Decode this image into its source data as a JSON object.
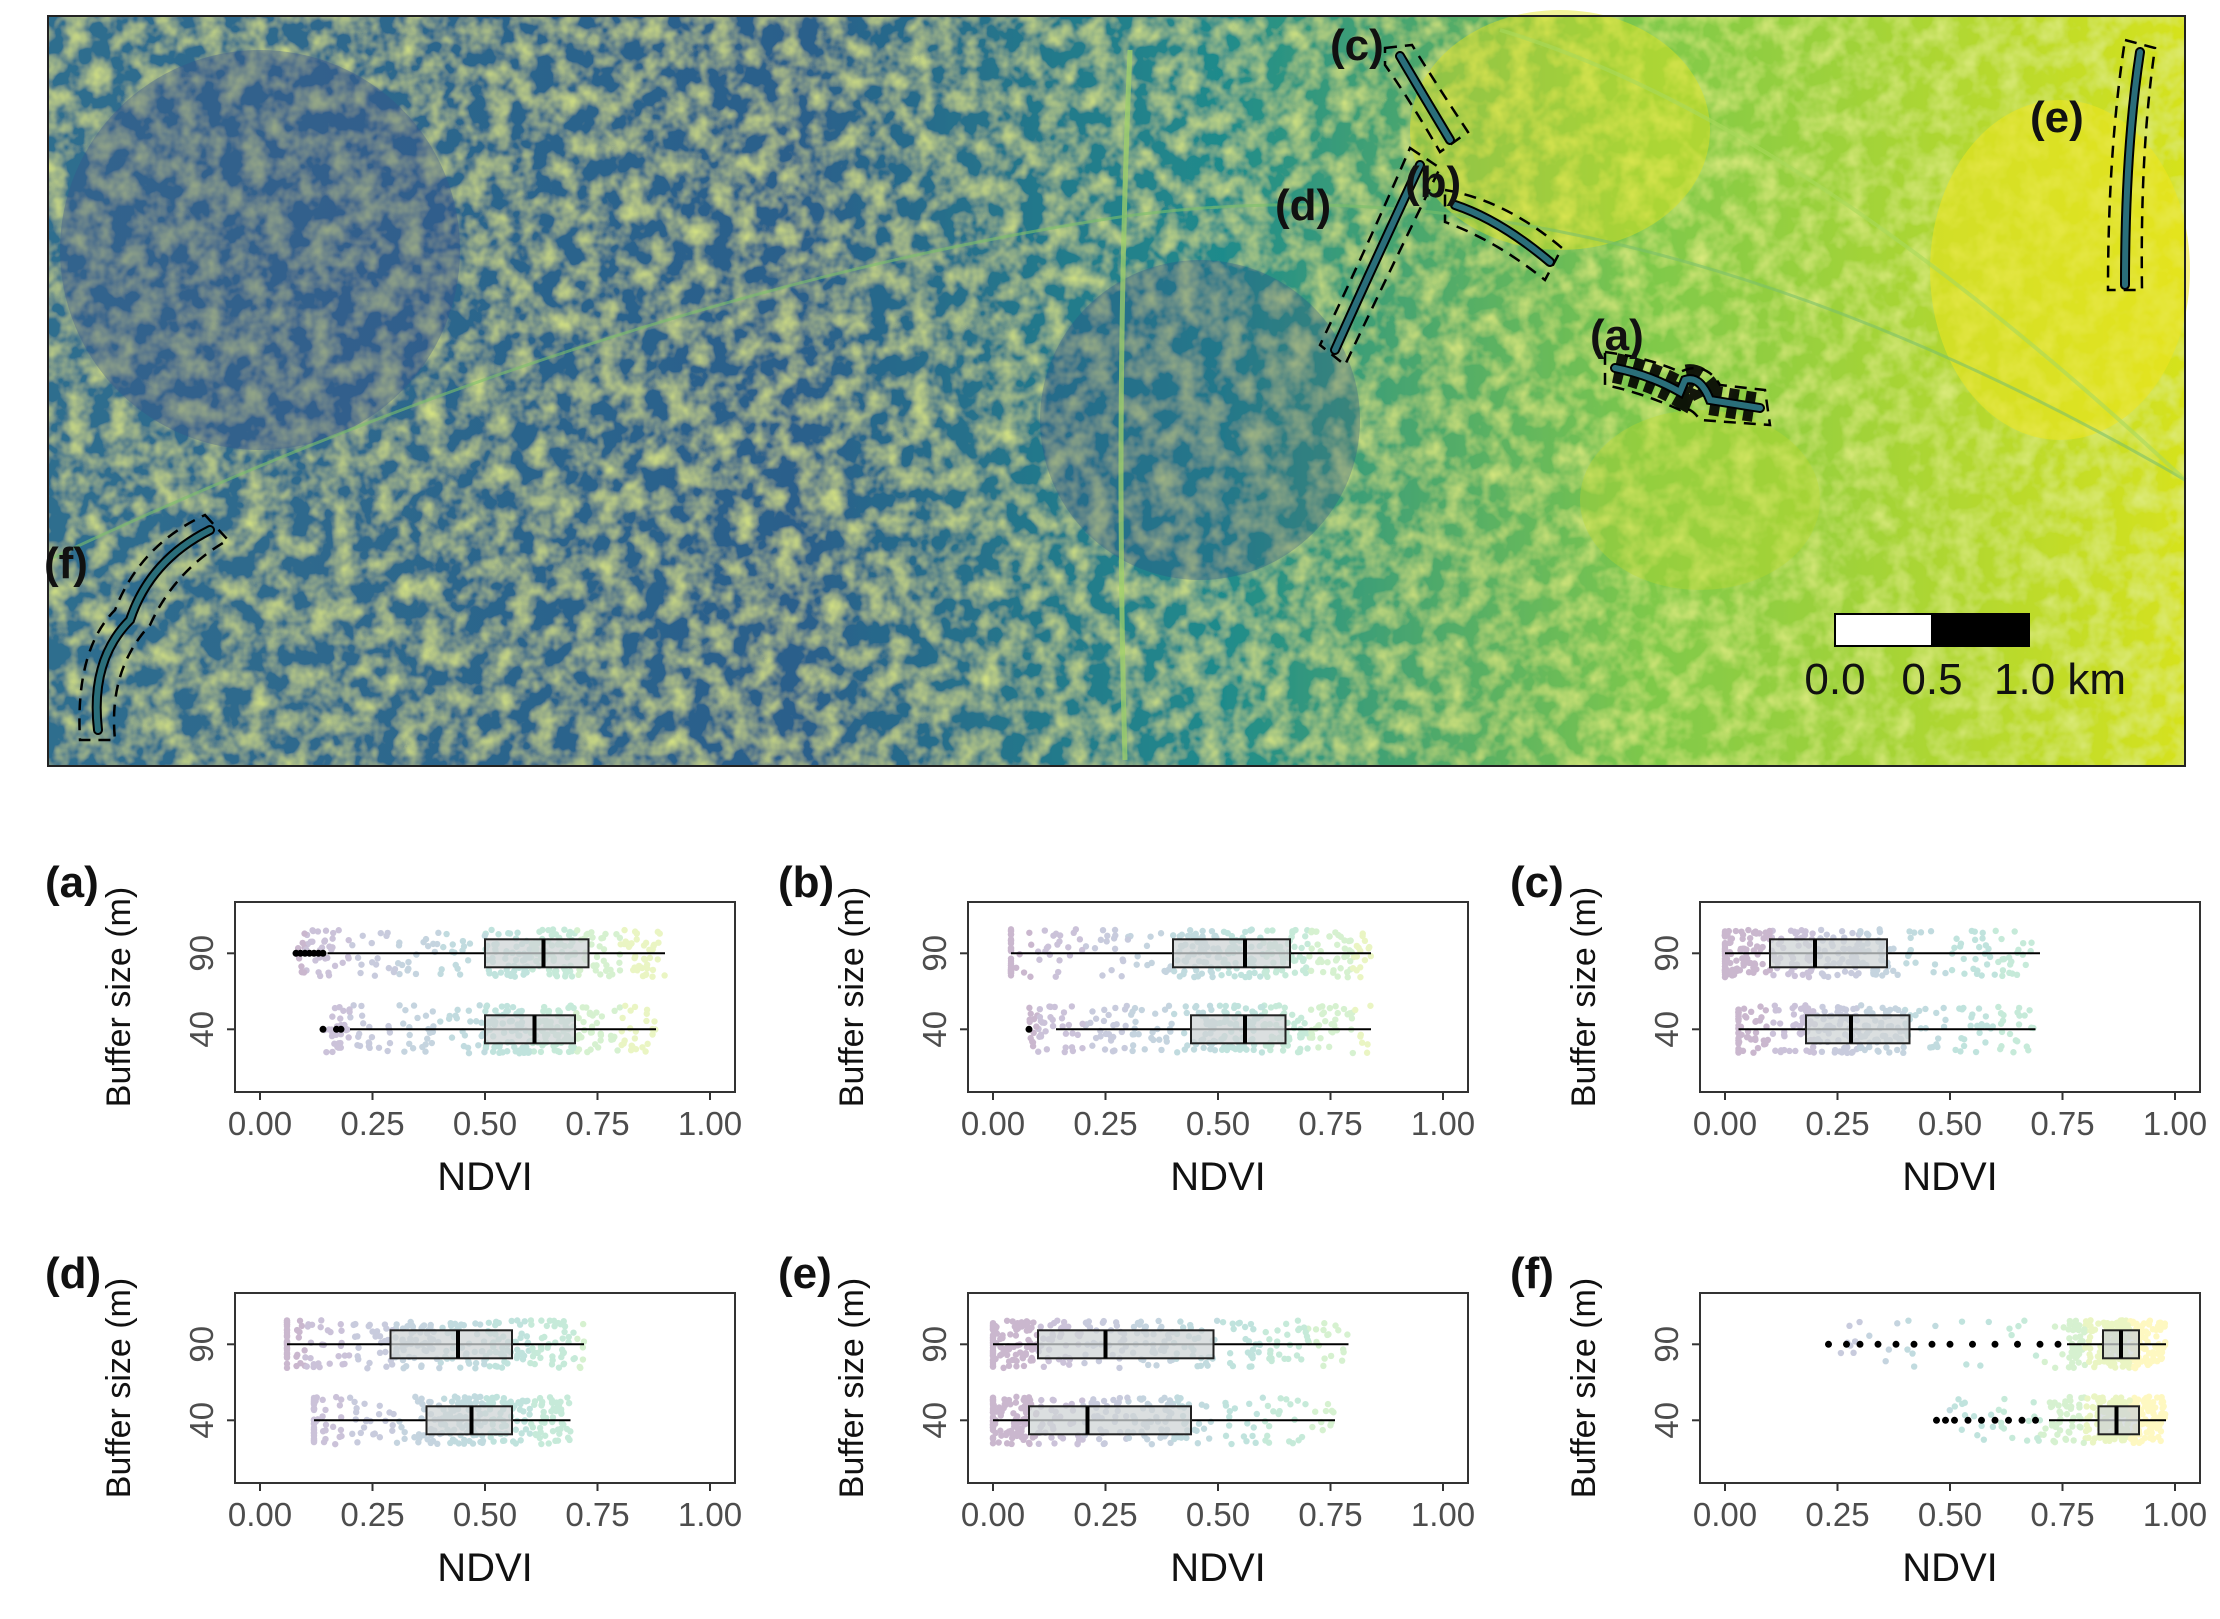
{
  "map": {
    "scale_bar": {
      "labels": [
        "0.0",
        "0.5",
        "1.0 km"
      ]
    },
    "site_labels": [
      "(a)",
      "(b)",
      "(c)",
      "(d)",
      "(e)",
      "(f)"
    ],
    "colors": {
      "low": "#440154",
      "mid": "#21908c",
      "high": "#fde725"
    }
  },
  "chart_data": [
    {
      "type": "box",
      "panel": "(a)",
      "categories": [
        "40",
        "90"
      ],
      "xlabel": "NDVI",
      "ylabel": "Buffer size (m)",
      "xlim": [
        0,
        1
      ],
      "xticks": [
        "0.00",
        "0.25",
        "0.50",
        "0.75",
        "1.00"
      ],
      "series": [
        {
          "category": "90",
          "min": 0.15,
          "q1": 0.5,
          "median": 0.63,
          "q3": 0.73,
          "max": 0.9,
          "outliers": [
            0.08,
            0.09,
            0.1,
            0.11,
            0.12,
            0.13,
            0.14
          ]
        },
        {
          "category": "40",
          "min": 0.2,
          "q1": 0.5,
          "median": 0.61,
          "q3": 0.7,
          "max": 0.88,
          "outliers": [
            0.14,
            0.17,
            0.18
          ]
        }
      ]
    },
    {
      "type": "box",
      "panel": "(b)",
      "categories": [
        "40",
        "90"
      ],
      "xlabel": "NDVI",
      "ylabel": "Buffer size (m)",
      "xlim": [
        0,
        1
      ],
      "xticks": [
        "0.00",
        "0.25",
        "0.50",
        "0.75",
        "1.00"
      ],
      "series": [
        {
          "category": "90",
          "min": 0.04,
          "q1": 0.4,
          "median": 0.56,
          "q3": 0.66,
          "max": 0.84,
          "outliers": []
        },
        {
          "category": "40",
          "min": 0.14,
          "q1": 0.44,
          "median": 0.56,
          "q3": 0.65,
          "max": 0.84,
          "outliers": [
            0.08
          ]
        }
      ]
    },
    {
      "type": "box",
      "panel": "(c)",
      "categories": [
        "40",
        "90"
      ],
      "xlabel": "NDVI",
      "ylabel": "Buffer size (m)",
      "xlim": [
        0,
        1
      ],
      "xticks": [
        "0.00",
        "0.25",
        "0.50",
        "0.75",
        "1.00"
      ],
      "series": [
        {
          "category": "90",
          "min": 0.0,
          "q1": 0.1,
          "median": 0.2,
          "q3": 0.36,
          "max": 0.7,
          "outliers": []
        },
        {
          "category": "40",
          "min": 0.03,
          "q1": 0.18,
          "median": 0.28,
          "q3": 0.41,
          "max": 0.69,
          "outliers": []
        }
      ]
    },
    {
      "type": "box",
      "panel": "(d)",
      "categories": [
        "40",
        "90"
      ],
      "xlabel": "NDVI",
      "ylabel": "Buffer size (m)",
      "xlim": [
        0,
        1
      ],
      "xticks": [
        "0.00",
        "0.25",
        "0.50",
        "0.75",
        "1.00"
      ],
      "series": [
        {
          "category": "90",
          "min": 0.06,
          "q1": 0.29,
          "median": 0.44,
          "q3": 0.56,
          "max": 0.72,
          "outliers": []
        },
        {
          "category": "40",
          "min": 0.12,
          "q1": 0.37,
          "median": 0.47,
          "q3": 0.56,
          "max": 0.69,
          "outliers": []
        }
      ]
    },
    {
      "type": "box",
      "panel": "(e)",
      "categories": [
        "40",
        "90"
      ],
      "xlabel": "NDVI",
      "ylabel": "Buffer size (m)",
      "xlim": [
        0,
        1
      ],
      "xticks": [
        "0.00",
        "0.25",
        "0.50",
        "0.75",
        "1.00"
      ],
      "series": [
        {
          "category": "90",
          "min": 0.0,
          "q1": 0.1,
          "median": 0.25,
          "q3": 0.49,
          "max": 0.79,
          "outliers": []
        },
        {
          "category": "40",
          "min": 0.0,
          "q1": 0.08,
          "median": 0.21,
          "q3": 0.44,
          "max": 0.76,
          "outliers": []
        }
      ]
    },
    {
      "type": "box",
      "panel": "(f)",
      "categories": [
        "40",
        "90"
      ],
      "xlabel": "NDVI",
      "ylabel": "Buffer size (m)",
      "xlim": [
        0,
        1
      ],
      "xticks": [
        "0.00",
        "0.25",
        "0.50",
        "0.75",
        "1.00"
      ],
      "series": [
        {
          "category": "90",
          "min": 0.76,
          "q1": 0.84,
          "median": 0.88,
          "q3": 0.92,
          "max": 0.98,
          "outliers": [
            0.23,
            0.27,
            0.3,
            0.34,
            0.38,
            0.42,
            0.46,
            0.5,
            0.55,
            0.6,
            0.65,
            0.7,
            0.74
          ]
        },
        {
          "category": "40",
          "min": 0.72,
          "q1": 0.83,
          "median": 0.87,
          "q3": 0.92,
          "max": 0.98,
          "outliers": [
            0.47,
            0.49,
            0.51,
            0.54,
            0.57,
            0.6,
            0.63,
            0.66,
            0.69
          ]
        }
      ]
    }
  ]
}
